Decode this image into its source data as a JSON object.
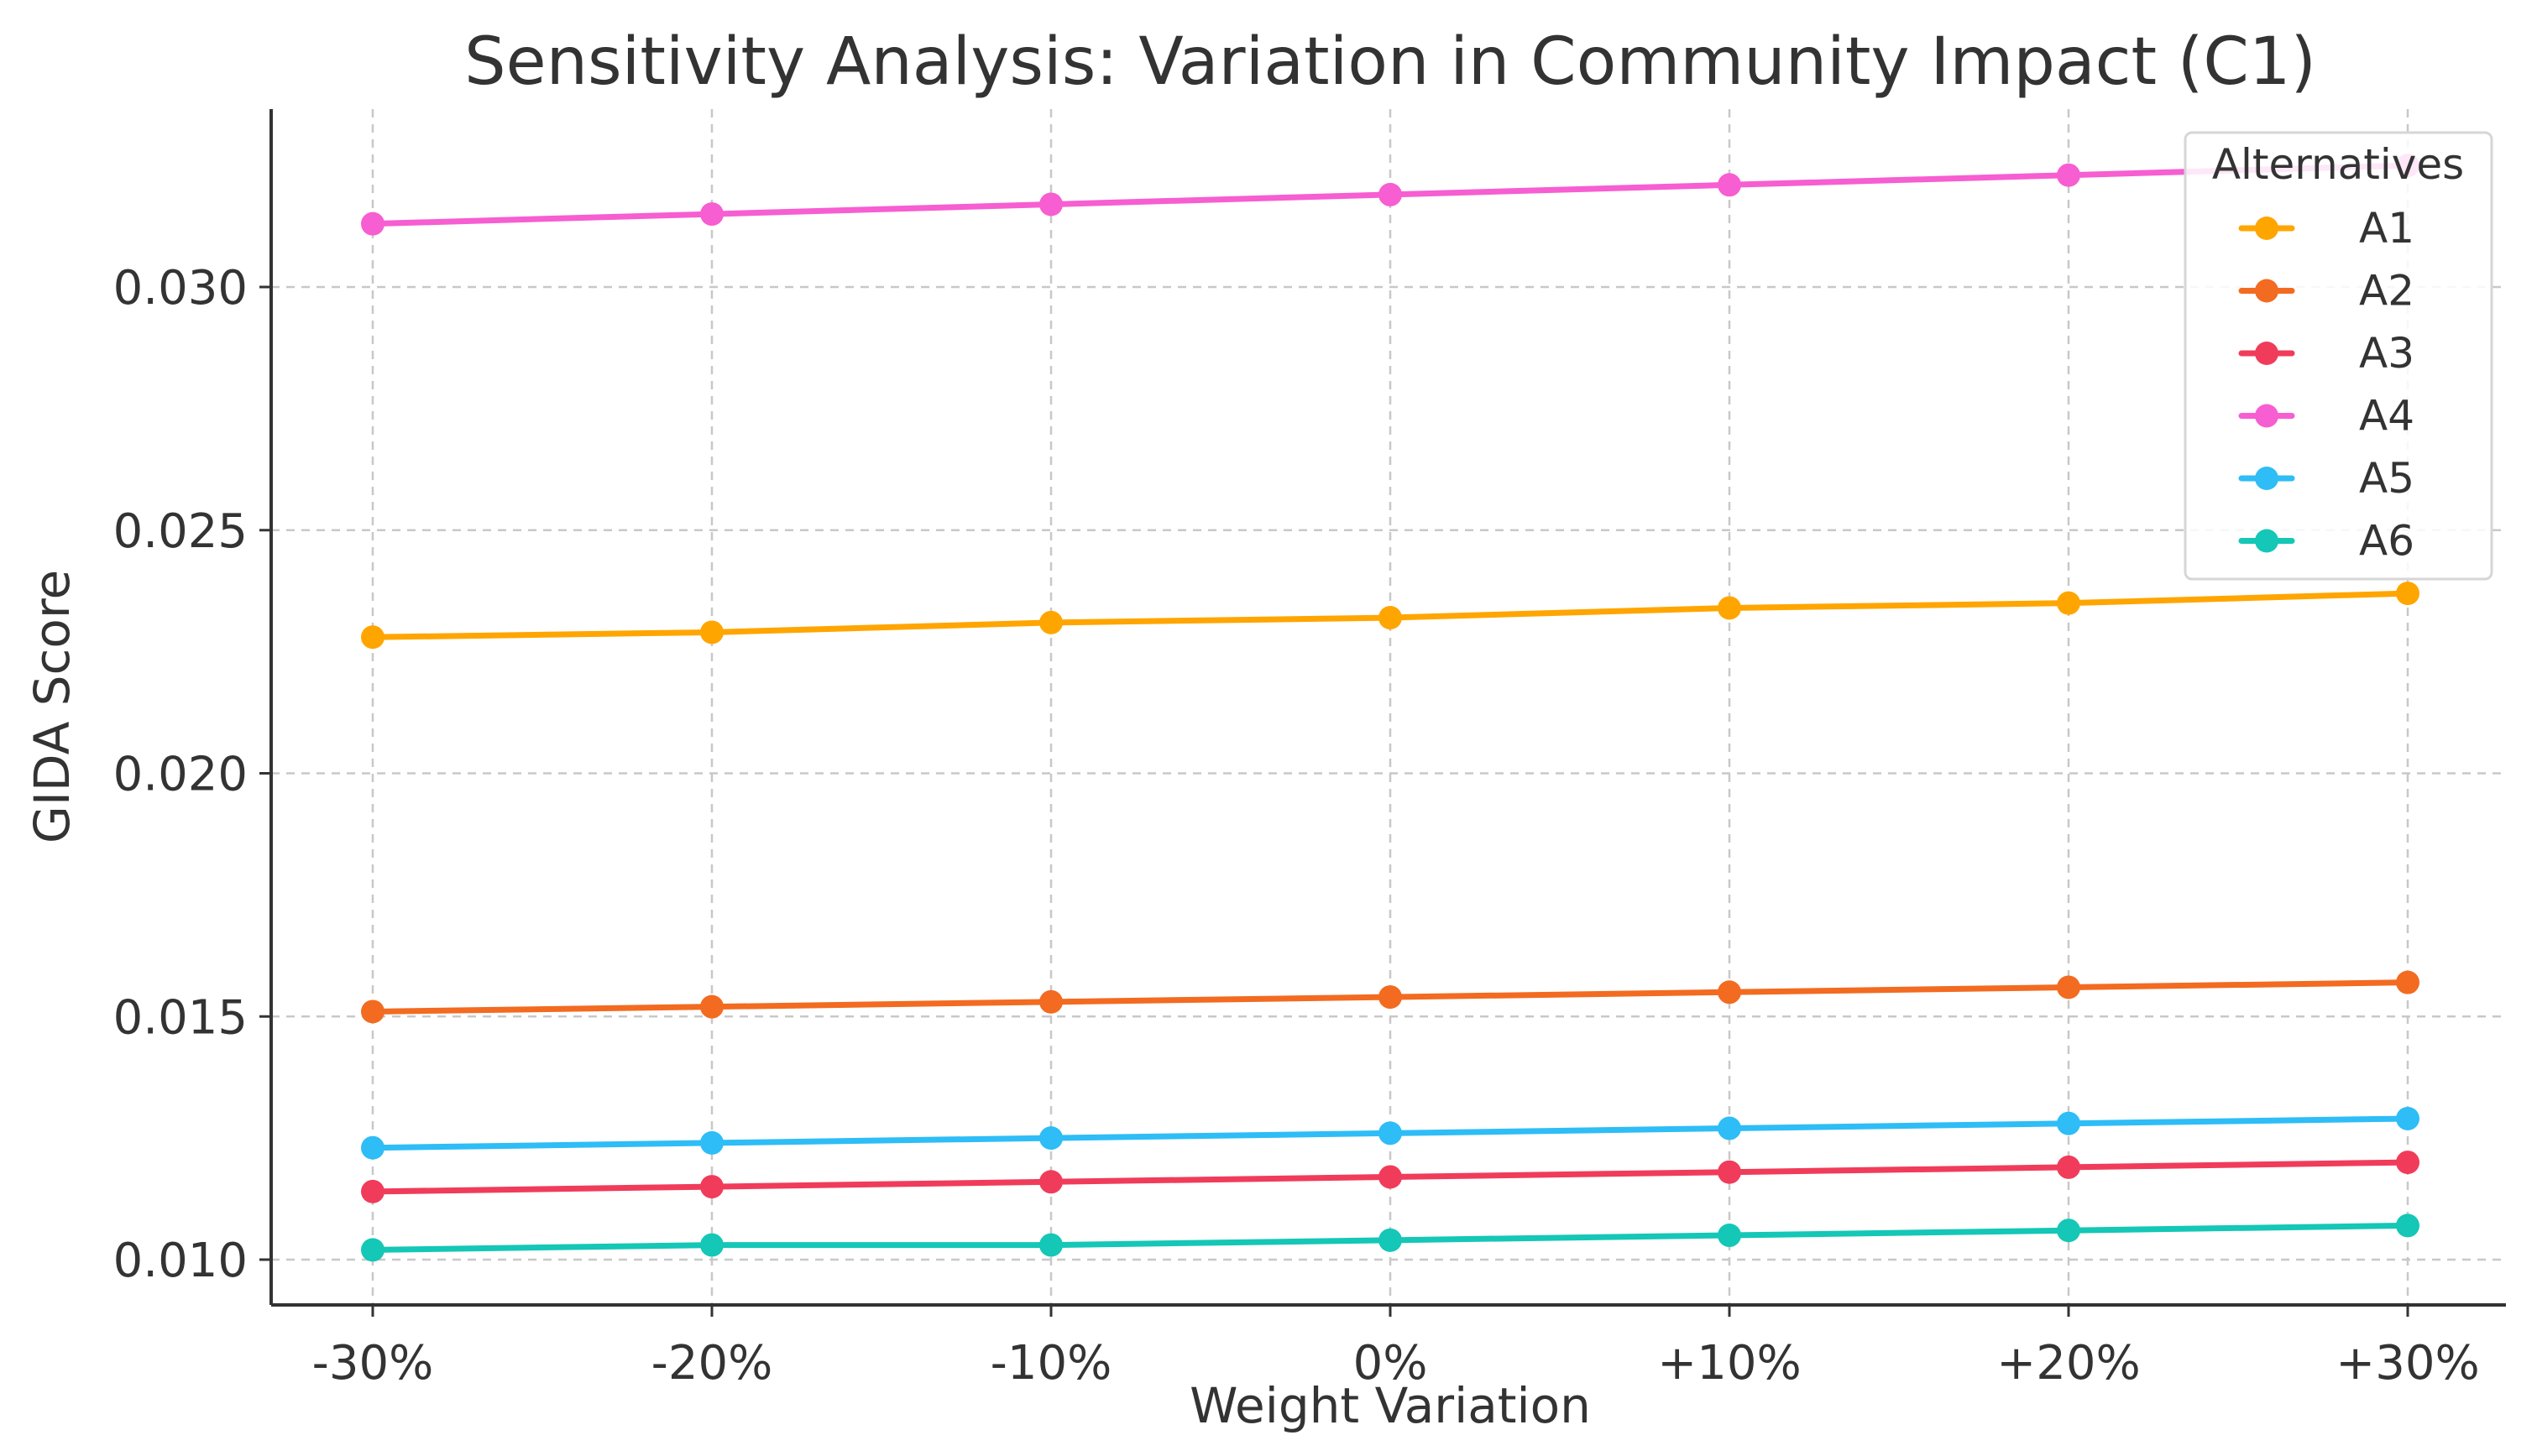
{
  "chart_data": {
    "type": "line",
    "title": "Sensitivity Analysis: Variation in Community Impact (C1)",
    "xlabel": "Weight Variation",
    "ylabel": "GIDA Score",
    "categories": [
      "-30%",
      "-20%",
      "-10%",
      "0%",
      "+10%",
      "+20%",
      "+30%"
    ],
    "ylim": [
      0.0095,
      0.0331
    ],
    "yticks": [
      0.01,
      0.015,
      0.02,
      0.025,
      0.03
    ],
    "ytick_labels": [
      "0.010",
      "0.015",
      "0.020",
      "0.025",
      "0.030"
    ],
    "grid": true,
    "legend": {
      "title": "Alternatives",
      "placement": "top-right"
    },
    "series": [
      {
        "name": "A1",
        "color": "#FFA500",
        "values": [
          0.0228,
          0.0229,
          0.0231,
          0.0232,
          0.0234,
          0.0235,
          0.0237
        ]
      },
      {
        "name": "A2",
        "color": "#F26B21",
        "values": [
          0.0151,
          0.0152,
          0.0153,
          0.0154,
          0.0155,
          0.0156,
          0.0157
        ]
      },
      {
        "name": "A3",
        "color": "#F03C5A",
        "values": [
          0.0114,
          0.0115,
          0.0116,
          0.0117,
          0.0118,
          0.0119,
          0.012
        ]
      },
      {
        "name": "A4",
        "color": "#F65ED1",
        "values": [
          0.0313,
          0.0315,
          0.0317,
          0.0319,
          0.0321,
          0.0323,
          0.0325
        ]
      },
      {
        "name": "A5",
        "color": "#2EBDF6",
        "values": [
          0.0123,
          0.0124,
          0.0125,
          0.0126,
          0.0127,
          0.0128,
          0.0129
        ]
      },
      {
        "name": "A6",
        "color": "#14C7B6",
        "values": [
          0.0102,
          0.0103,
          0.0103,
          0.0104,
          0.0105,
          0.0106,
          0.0107
        ]
      }
    ]
  }
}
